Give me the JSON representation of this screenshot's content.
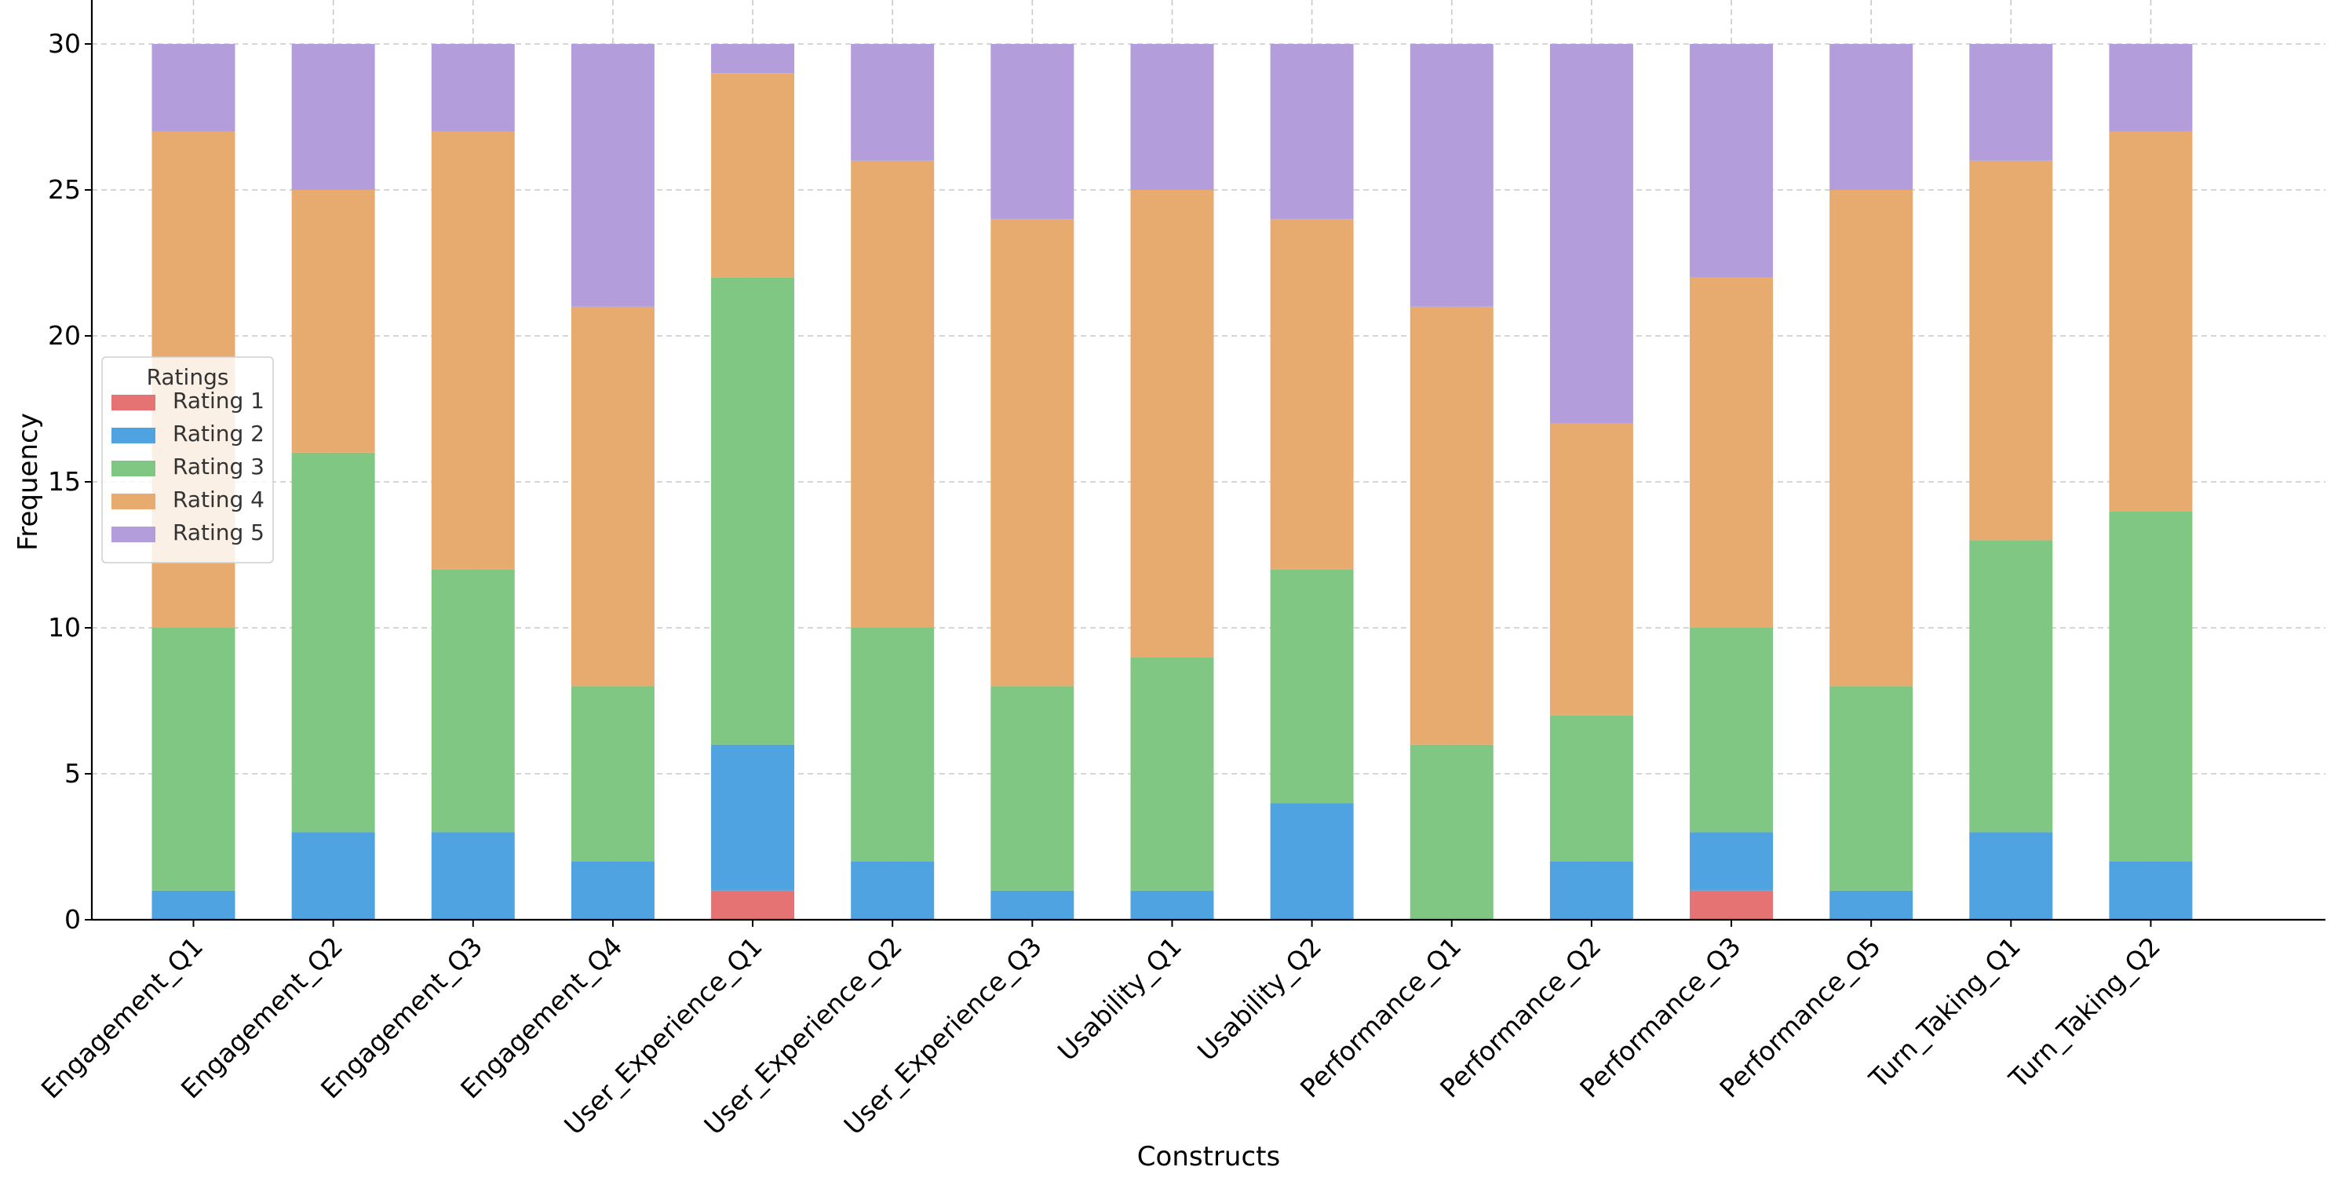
{
  "chart_data": {
    "type": "bar",
    "stacked": true,
    "categories": [
      "Engagement_Q1",
      "Engagement_Q2",
      "Engagement_Q3",
      "Engagement_Q4",
      "User_Experience_Q1",
      "User_Experience_Q2",
      "User_Experience_Q3",
      "Usability_Q1",
      "Usability_Q2",
      "Performance_Q1",
      "Performance_Q2",
      "Performance_Q3",
      "Performance_Q5",
      "Turn_Taking_Q1",
      "Turn_Taking_Q2"
    ],
    "series": [
      {
        "name": "Rating 1",
        "color": "#e57373",
        "values": [
          0,
          0,
          0,
          0,
          1,
          0,
          0,
          0,
          0,
          0,
          0,
          1,
          0,
          0,
          0
        ]
      },
      {
        "name": "Rating 2",
        "color": "#4fa3e0",
        "values": [
          1,
          3,
          3,
          2,
          5,
          2,
          1,
          1,
          4,
          0,
          2,
          2,
          1,
          3,
          2
        ]
      },
      {
        "name": "Rating 3",
        "color": "#81c784",
        "values": [
          9,
          13,
          9,
          6,
          16,
          8,
          7,
          8,
          8,
          6,
          5,
          7,
          7,
          10,
          12
        ]
      },
      {
        "name": "Rating 4",
        "color": "#e8ab6f",
        "values": [
          17,
          9,
          15,
          13,
          7,
          16,
          16,
          16,
          12,
          15,
          10,
          12,
          17,
          13,
          13
        ]
      },
      {
        "name": "Rating 5",
        "color": "#b39ddb",
        "values": [
          3,
          5,
          3,
          9,
          1,
          4,
          6,
          5,
          6,
          9,
          13,
          8,
          5,
          4,
          3
        ]
      }
    ],
    "title": "",
    "xlabel": "Constructs",
    "ylabel": "Frequency",
    "ylim": [
      0,
      30
    ],
    "yticks": [
      "0",
      "5",
      "10",
      "15",
      "20",
      "25",
      "30"
    ],
    "grid": true,
    "legend": {
      "title": "Ratings",
      "placement": "center-left"
    }
  }
}
